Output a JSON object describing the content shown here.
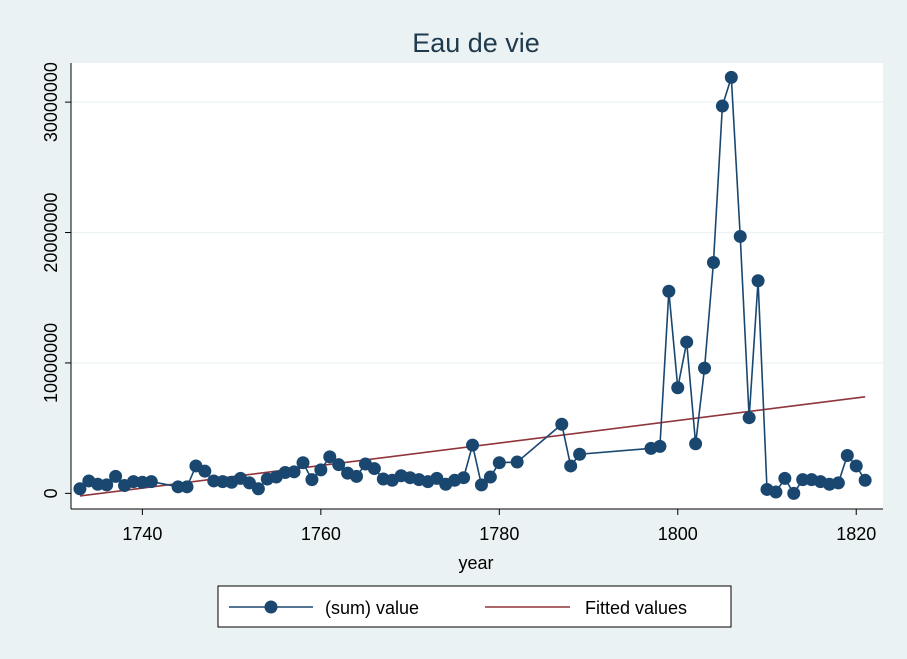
{
  "chart_data": {
    "type": "line",
    "title": "Eau de vie",
    "xlabel": "year",
    "ylabel": "",
    "xlim": [
      1732,
      1823
    ],
    "ylim": [
      -1200000,
      33000000
    ],
    "xticks": [
      1740,
      1760,
      1780,
      1800,
      1820
    ],
    "yticks": [
      0,
      10000000,
      20000000,
      30000000
    ],
    "grid": "horizontal",
    "legend_position": "bottom",
    "colors": {
      "background": "#eaf2f3",
      "plot_background": "#ffffff",
      "series_line": "#1a476f",
      "marker": "#1a476f",
      "fitted_line": "#90353b",
      "grid": "#eaf2f3",
      "title": "#1f3a4d"
    },
    "series": [
      {
        "name": "(sum) value",
        "style": "line-with-markers",
        "x": [
          1733,
          1734,
          1735,
          1736,
          1737,
          1738,
          1739,
          1740,
          1741,
          1744,
          1745,
          1746,
          1747,
          1748,
          1749,
          1750,
          1751,
          1752,
          1753,
          1754,
          1755,
          1756,
          1757,
          1758,
          1759,
          1760,
          1761,
          1762,
          1763,
          1764,
          1765,
          1766,
          1767,
          1768,
          1769,
          1770,
          1771,
          1772,
          1773,
          1774,
          1775,
          1776,
          1777,
          1778,
          1779,
          1780,
          1782,
          1787,
          1788,
          1789,
          1797,
          1798,
          1799,
          1800,
          1801,
          1802,
          1803,
          1804,
          1805,
          1806,
          1807,
          1808,
          1809,
          1810,
          1811,
          1812,
          1813,
          1814,
          1815,
          1816,
          1817,
          1818,
          1819,
          1820,
          1821
        ],
        "values": [
          350000,
          950000,
          700000,
          650000,
          1300000,
          600000,
          900000,
          850000,
          900000,
          500000,
          500000,
          2100000,
          1700000,
          950000,
          900000,
          850000,
          1150000,
          800000,
          350000,
          1100000,
          1250000,
          1600000,
          1650000,
          2350000,
          1050000,
          1800000,
          2800000,
          2200000,
          1550000,
          1300000,
          2250000,
          1900000,
          1100000,
          1000000,
          1350000,
          1200000,
          1050000,
          900000,
          1150000,
          700000,
          1000000,
          1200000,
          3700000,
          650000,
          1250000,
          2350000,
          2400000,
          5300000,
          2100000,
          3000000,
          3450000,
          3600000,
          15500000,
          8100000,
          11600000,
          3800000,
          9600000,
          17700000,
          29700000,
          31900000,
          19700000,
          5800000,
          16300000,
          300000,
          100000,
          1150000,
          0,
          1050000,
          1050000,
          900000,
          700000,
          800000,
          2900000,
          2100000,
          1000000
        ]
      },
      {
        "name": "Fitted values",
        "style": "line",
        "x": [
          1733,
          1821
        ],
        "values": [
          -200000,
          7400000
        ]
      }
    ]
  }
}
